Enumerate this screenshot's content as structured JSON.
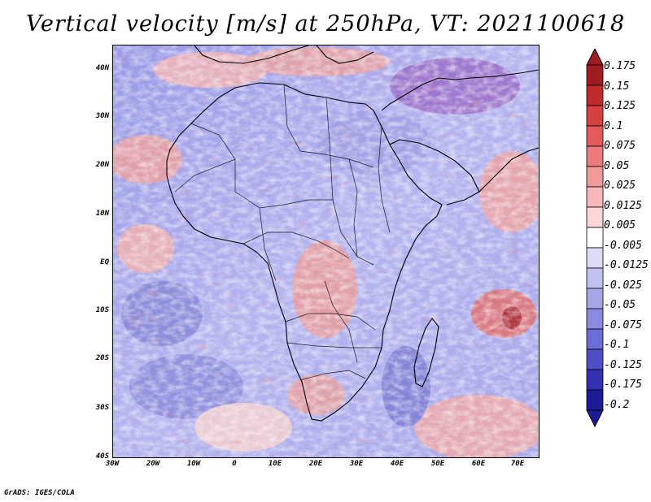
{
  "title": "Vertical velocity [m/s] at 250hPa, VT: 2021100618",
  "credit": "GrADS: IGES/COLA",
  "axes": {
    "y_labels": [
      "40N",
      "30N",
      "20N",
      "10N",
      "EQ",
      "10S",
      "20S",
      "30S",
      "40S"
    ],
    "x_labels": [
      "30W",
      "20W",
      "10W",
      "0",
      "10E",
      "20E",
      "30E",
      "40E",
      "50E",
      "60E",
      "70E"
    ]
  },
  "colorbar": {
    "labels": [
      "0.175",
      "0.15",
      "0.125",
      "0.1",
      "0.075",
      "0.05",
      "0.025",
      "0.0125",
      "0.005",
      "-0.005",
      "-0.0125",
      "-0.025",
      "-0.05",
      "-0.075",
      "-0.1",
      "-0.125",
      "-0.175",
      "-0.2"
    ],
    "colors": [
      "#a01c20",
      "#c02a2a",
      "#d84040",
      "#e45a5a",
      "#ec7c7c",
      "#f29a9a",
      "#f6b8b8",
      "#fad6d6",
      "#ffffff",
      "#ffffff",
      "#dcdcf6",
      "#c2c2f0",
      "#a6a6e8",
      "#8a8ae0",
      "#6c6cd6",
      "#4e4ec6",
      "#3232b0",
      "#1c1c96"
    ]
  },
  "chart_data": {
    "type": "heatmap",
    "title": "Vertical velocity [m/s] at 250hPa, VT: 2021100618",
    "variable": "Vertical velocity",
    "units": "m/s",
    "level": "250hPa",
    "valid_time": "2021100618",
    "lon_range": [
      -30,
      75
    ],
    "lat_range": [
      -40,
      45
    ],
    "contour_levels": [
      -0.2,
      -0.175,
      -0.125,
      -0.1,
      -0.075,
      -0.05,
      -0.025,
      -0.0125,
      -0.005,
      0.005,
      0.0125,
      0.025,
      0.05,
      0.075,
      0.1,
      0.125,
      0.15,
      0.175
    ]
  }
}
